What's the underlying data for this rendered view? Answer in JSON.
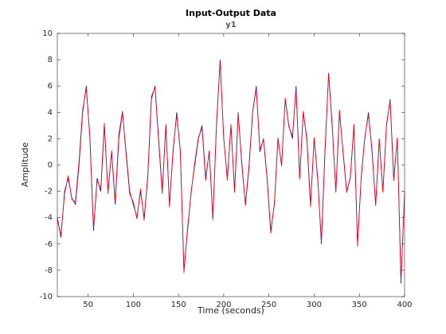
{
  "chart_data": {
    "type": "line",
    "title": "Input-Output Data",
    "subtitle": "y1",
    "xlabel": "Time (seconds)",
    "ylabel": "Amplitude",
    "x": [
      16,
      20,
      24,
      28,
      32,
      36,
      40,
      44,
      48,
      52,
      56,
      60,
      64,
      68,
      72,
      76,
      80,
      84,
      88,
      92,
      96,
      100,
      104,
      108,
      112,
      116,
      120,
      124,
      128,
      132,
      136,
      140,
      144,
      148,
      152,
      156,
      160,
      164,
      168,
      172,
      176,
      180,
      184,
      188,
      192,
      196,
      200,
      204,
      208,
      212,
      216,
      220,
      224,
      228,
      232,
      236,
      240,
      244,
      248,
      252,
      256,
      260,
      264,
      268,
      272,
      276,
      280,
      284,
      288,
      292,
      296,
      300,
      304,
      308,
      312,
      316,
      320,
      324,
      328,
      332,
      336,
      340,
      344,
      348,
      352,
      356,
      360,
      364,
      368,
      372,
      376,
      380,
      384,
      388,
      392,
      396,
      400
    ],
    "series": [
      {
        "color": "#0000ff",
        "values": [
          -4,
          -5.5,
          -2,
          -1,
          -2.5,
          -3,
          0,
          4,
          6,
          2,
          -5,
          -1,
          -2,
          3,
          -2,
          1,
          -3,
          2,
          4,
          1,
          -2,
          -3,
          -4,
          -2,
          -4,
          -1,
          5,
          6,
          2,
          -2,
          3,
          -3,
          1,
          4,
          1,
          -8,
          -5,
          -2,
          0,
          2,
          3,
          -1,
          1,
          -4,
          3,
          8,
          2,
          -1,
          3,
          -2,
          4,
          0,
          -3,
          0,
          4,
          6,
          1,
          2,
          -1,
          -5,
          -3,
          2,
          0,
          5,
          3,
          2,
          6,
          -1,
          4,
          2,
          -3,
          2,
          -1,
          -6,
          1,
          7,
          3,
          -2,
          4,
          1,
          -2,
          -1,
          3,
          -6,
          -1,
          2,
          4,
          1,
          -3,
          2,
          -2,
          3,
          5,
          -1,
          2,
          -9,
          -2
        ]
      },
      {
        "color": "#ff0000",
        "values": [
          -4.2,
          -5.3,
          -2.2,
          -0.8,
          -2.6,
          -2.8,
          0.3,
          4.2,
          5.8,
          2.2,
          -4.8,
          -1.2,
          -1.8,
          3.2,
          -2.2,
          1.1,
          -2.8,
          2.3,
          4.1,
          0.8,
          -2.2,
          -2.8,
          -4.1,
          -1.8,
          -4.2,
          -0.8,
          5.2,
          5.9,
          1.8,
          -2.2,
          3.1,
          -3.2,
          1.2,
          3.8,
          1.1,
          -8.2,
          -4.8,
          -2.1,
          0.2,
          2.1,
          2.8,
          -1.2,
          1.1,
          -4.2,
          3.2,
          7.8,
          2.1,
          -1.2,
          3.1,
          -2.1,
          3.9,
          0.2,
          -3.1,
          -0.2,
          4.1,
          5.8,
          1.2,
          1.9,
          -1.1,
          -5.2,
          -2.9,
          2.1,
          -0.1,
          5.1,
          2.9,
          2.2,
          5.8,
          -1.1,
          4.1,
          1.8,
          -3.2,
          2.1,
          -1.2,
          -5.8,
          1.2,
          6.9,
          2.8,
          -2.1,
          4.2,
          0.9,
          -2.1,
          -0.9,
          3.1,
          -6.2,
          -0.9,
          2.1,
          3.8,
          1.2,
          -3.1,
          1.9,
          -2.1,
          3.1,
          4.9,
          -1.2,
          2.1,
          -8.8,
          -2.1
        ]
      }
    ],
    "xlim": [
      16,
      400
    ],
    "xticks": [
      50,
      100,
      150,
      200,
      250,
      300,
      350,
      400
    ],
    "ylim": [
      -10,
      10
    ],
    "yticks": [
      -10,
      -8,
      -6,
      -4,
      -2,
      0,
      2,
      4,
      6,
      8,
      10
    ]
  }
}
